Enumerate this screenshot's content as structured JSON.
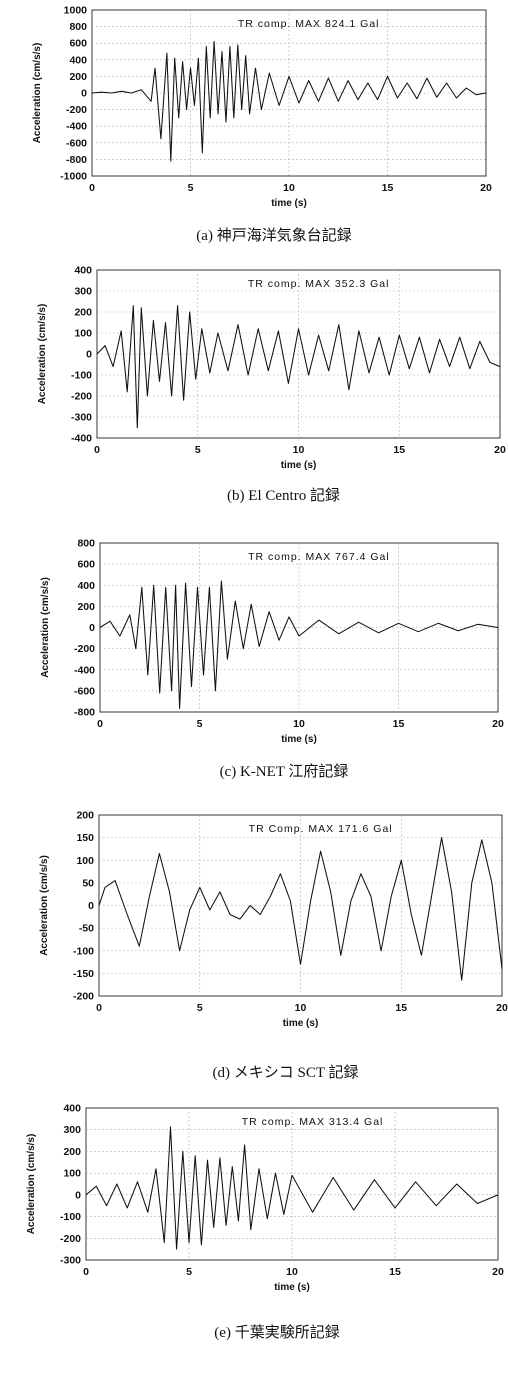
{
  "figure": {
    "panels": [
      {
        "id": "a",
        "caption": "(a) 神戸海洋気象台記録"
      },
      {
        "id": "b",
        "caption": "(b) El Centro 記録"
      },
      {
        "id": "c",
        "caption": "(c) K-NET 江府記録"
      },
      {
        "id": "d",
        "caption": "(d) メキシコ SCT 記録"
      },
      {
        "id": "e",
        "caption": "(e) 千葉実験所記録"
      }
    ]
  },
  "chart_data": [
    {
      "type": "line",
      "caption": "(a) 神戸海洋気象台記録",
      "annotation": "TR comp. MAX 824.1 Gal",
      "xlabel": "time (s)",
      "ylabel": "Acceleration (cm/s/s)",
      "xlim": [
        0,
        20
      ],
      "ylim": [
        -1000,
        1000
      ],
      "xticks": [
        0,
        5,
        10,
        15,
        20
      ],
      "yticks": [
        -1000,
        -800,
        -600,
        -400,
        -200,
        0,
        200,
        400,
        600,
        800,
        1000
      ],
      "grid": true,
      "series": [
        {
          "x": [
            0,
            0.5,
            1,
            1.5,
            2,
            2.5,
            3,
            3.2,
            3.5,
            3.8,
            4,
            4.2,
            4.4,
            4.6,
            4.8,
            5,
            5.2,
            5.4,
            5.6,
            5.8,
            6,
            6.2,
            6.4,
            6.6,
            6.8,
            7,
            7.2,
            7.4,
            7.6,
            7.8,
            8,
            8.3,
            8.6,
            9,
            9.5,
            10,
            10.5,
            11,
            11.5,
            12,
            12.5,
            13,
            13.5,
            14,
            14.5,
            15,
            15.5,
            16,
            16.5,
            17,
            17.5,
            18,
            18.5,
            19,
            19.5,
            20
          ],
          "y": [
            0,
            10,
            0,
            20,
            0,
            40,
            -100,
            300,
            -550,
            480,
            -820,
            420,
            -300,
            380,
            -200,
            300,
            -150,
            420,
            -720,
            560,
            -300,
            620,
            -250,
            500,
            -350,
            560,
            -300,
            580,
            -200,
            450,
            -250,
            300,
            -200,
            240,
            -150,
            200,
            -120,
            150,
            -100,
            180,
            -100,
            150,
            -80,
            120,
            -80,
            200,
            -60,
            120,
            -70,
            180,
            -50,
            120,
            -60,
            60,
            -20,
            0
          ]
        }
      ]
    },
    {
      "type": "line",
      "caption": "(b) El Centro 記録",
      "annotation": "TR comp. MAX 352.3 Gal",
      "xlabel": "time (s)",
      "ylabel": "Acceleration (cm/s/s)",
      "xlim": [
        0,
        20
      ],
      "ylim": [
        -400,
        400
      ],
      "xticks": [
        0,
        5,
        10,
        15,
        20
      ],
      "yticks": [
        -400,
        -300,
        -200,
        -100,
        0,
        100,
        200,
        300,
        400
      ],
      "grid": true,
      "series": [
        {
          "x": [
            0,
            0.4,
            0.8,
            1.2,
            1.5,
            1.8,
            2,
            2.2,
            2.5,
            2.8,
            3.1,
            3.4,
            3.7,
            4,
            4.3,
            4.6,
            4.9,
            5.2,
            5.6,
            6,
            6.5,
            7,
            7.5,
            8,
            8.5,
            9,
            9.5,
            10,
            10.5,
            11,
            11.5,
            12,
            12.5,
            13,
            13.5,
            14,
            14.5,
            15,
            15.5,
            16,
            16.5,
            17,
            17.5,
            18,
            18.5,
            19,
            19.5,
            20
          ],
          "y": [
            0,
            40,
            -60,
            110,
            -180,
            230,
            -352,
            220,
            -200,
            160,
            -130,
            150,
            -200,
            230,
            -220,
            200,
            -120,
            120,
            -90,
            100,
            -80,
            140,
            -100,
            120,
            -80,
            110,
            -140,
            120,
            -100,
            90,
            -80,
            140,
            -170,
            110,
            -90,
            80,
            -100,
            90,
            -70,
            80,
            -90,
            70,
            -60,
            80,
            -70,
            60,
            -40,
            -60
          ]
        }
      ]
    },
    {
      "type": "line",
      "caption": "(c) K-NET 江府記録",
      "annotation": "TR comp. MAX 767.4 Gal",
      "xlabel": "time (s)",
      "ylabel": "Acceleration (cm/s/s)",
      "xlim": [
        0,
        20
      ],
      "ylim": [
        -800,
        800
      ],
      "xticks": [
        0,
        5,
        10,
        15,
        20
      ],
      "yticks": [
        -800,
        -600,
        -400,
        -200,
        0,
        200,
        400,
        600,
        800
      ],
      "grid": true,
      "series": [
        {
          "x": [
            0,
            0.5,
            1,
            1.5,
            1.8,
            2.1,
            2.4,
            2.7,
            3,
            3.3,
            3.6,
            3.8,
            4,
            4.3,
            4.6,
            4.9,
            5.2,
            5.5,
            5.8,
            6.1,
            6.4,
            6.8,
            7.2,
            7.6,
            8,
            8.5,
            9,
            9.5,
            10,
            11,
            12,
            13,
            14,
            15,
            16,
            17,
            18,
            19,
            20
          ],
          "y": [
            0,
            60,
            -80,
            120,
            -200,
            380,
            -450,
            400,
            -620,
            380,
            -600,
            400,
            -767,
            420,
            -560,
            380,
            -450,
            380,
            -600,
            440,
            -300,
            250,
            -200,
            220,
            -180,
            150,
            -120,
            100,
            -80,
            70,
            -60,
            50,
            -50,
            40,
            -40,
            40,
            -30,
            30,
            0
          ]
        }
      ]
    },
    {
      "type": "line",
      "caption": "(d) メキシコ SCT 記録",
      "annotation": "TR Comp. MAX 171.6 Gal",
      "xlabel": "time (s)",
      "ylabel": "Acceleration (cm/s/s)",
      "xlim": [
        0,
        20
      ],
      "ylim": [
        -200,
        200
      ],
      "xticks": [
        0,
        5,
        10,
        15,
        20
      ],
      "yticks": [
        -200,
        -150,
        -100,
        -50,
        0,
        50,
        100,
        150,
        200
      ],
      "grid": true,
      "series": [
        {
          "x": [
            0,
            0.3,
            0.8,
            1.4,
            2,
            2.5,
            3,
            3.5,
            4,
            4.5,
            5,
            5.5,
            6,
            6.5,
            7,
            7.5,
            8,
            8.5,
            9,
            9.5,
            10,
            10.5,
            11,
            11.5,
            12,
            12.5,
            13,
            13.5,
            14,
            14.5,
            15,
            15.5,
            16,
            16.5,
            17,
            17.5,
            18,
            18.5,
            19,
            19.5,
            20
          ],
          "y": [
            0,
            40,
            55,
            -20,
            -90,
            20,
            115,
            30,
            -100,
            -10,
            40,
            -10,
            30,
            -20,
            -30,
            0,
            -20,
            20,
            70,
            10,
            -130,
            10,
            120,
            30,
            -110,
            10,
            70,
            20,
            -100,
            20,
            100,
            -20,
            -110,
            20,
            150,
            30,
            -165,
            50,
            145,
            50,
            -140
          ]
        }
      ]
    },
    {
      "type": "line",
      "caption": "(e) 千葉実験所記録",
      "annotation": "TR comp. MAX 313.4 Gal",
      "xlabel": "time (s)",
      "ylabel": "Acceleration (cm/s/s)",
      "xlim": [
        0,
        20
      ],
      "ylim": [
        -300,
        400
      ],
      "xticks": [
        0,
        5,
        10,
        15,
        20
      ],
      "yticks": [
        -300,
        -200,
        -100,
        0,
        100,
        200,
        300,
        400
      ],
      "grid": true,
      "series": [
        {
          "x": [
            0,
            0.5,
            1,
            1.5,
            2,
            2.5,
            3,
            3.4,
            3.8,
            4.1,
            4.4,
            4.7,
            5,
            5.3,
            5.6,
            5.9,
            6.2,
            6.5,
            6.8,
            7.1,
            7.4,
            7.7,
            8,
            8.4,
            8.8,
            9.2,
            9.6,
            10,
            11,
            12,
            13,
            14,
            15,
            16,
            17,
            18,
            19,
            20
          ],
          "y": [
            0,
            40,
            -50,
            50,
            -60,
            60,
            -80,
            120,
            -220,
            313,
            -250,
            200,
            -220,
            180,
            -230,
            160,
            -150,
            170,
            -140,
            130,
            -120,
            230,
            -160,
            120,
            -110,
            100,
            -90,
            90,
            -80,
            80,
            -70,
            70,
            -60,
            60,
            -50,
            50,
            -40,
            0
          ]
        }
      ]
    }
  ]
}
